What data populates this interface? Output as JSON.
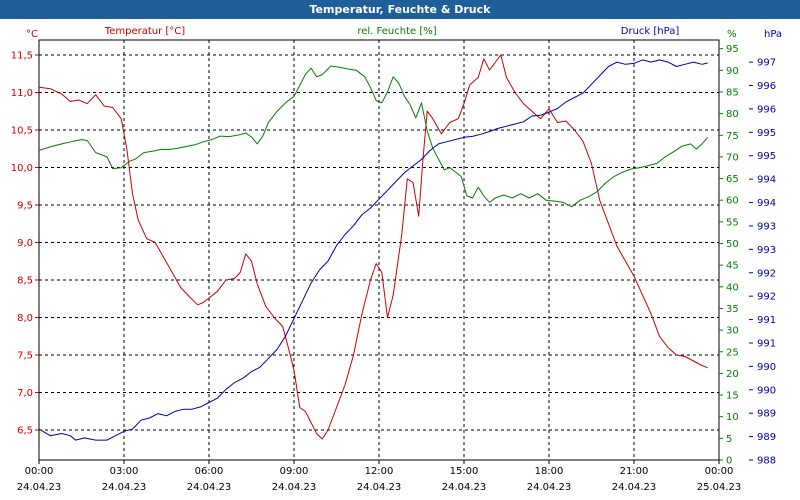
{
  "window": {
    "title": "Temperatur, Feuchte & Druck"
  },
  "chart_data": {
    "type": "line",
    "title": "Temperatur, Feuchte & Druck",
    "x_range_hours": [
      0,
      24
    ],
    "x_ticks": [
      {
        "time": "00:00",
        "date": "24.04.23"
      },
      {
        "time": "03:00",
        "date": "24.04.23"
      },
      {
        "time": "06:00",
        "date": "24.04.23"
      },
      {
        "time": "09:00",
        "date": "24.04.23"
      },
      {
        "time": "12:00",
        "date": "24.04.23"
      },
      {
        "time": "15:00",
        "date": "24.04.23"
      },
      {
        "time": "18:00",
        "date": "24.04.23"
      },
      {
        "time": "21:00",
        "date": "24.04.23"
      },
      {
        "time": "00:00",
        "date": "25.04.23"
      }
    ],
    "axes": {
      "temperature": {
        "unit": "°C",
        "ylim": [
          6.1,
          11.7
        ],
        "ticks": [
          "11,5",
          "11,0",
          "10,5",
          "10,0",
          "9,5",
          "9,0",
          "8,5",
          "8,0",
          "7,5",
          "7,0",
          "6,5"
        ]
      },
      "humidity": {
        "unit": "%",
        "ylim": [
          0,
          97
        ],
        "ticks": [
          "95",
          "90",
          "85",
          "80",
          "75",
          "70",
          "65",
          "60",
          "55",
          "50",
          "45",
          "40",
          "35",
          "30",
          "25",
          "20",
          "15",
          "10",
          "5",
          "0"
        ]
      },
      "pressure": {
        "unit": "hPa",
        "ylim": [
          988,
          997.5
        ],
        "ticks": [
          "997",
          "996",
          "996",
          "995",
          "995",
          "994",
          "994",
          "993",
          "993",
          "992",
          "992",
          "991",
          "991",
          "990",
          "990",
          "989",
          "989",
          "988"
        ]
      }
    },
    "series": [
      {
        "name": "Temperatur [°C]",
        "axis": "temperature",
        "color": "#cc0000",
        "points": [
          [
            0,
            11.07
          ],
          [
            0.4,
            11.05
          ],
          [
            0.8,
            10.98
          ],
          [
            1.1,
            10.88
          ],
          [
            1.4,
            10.9
          ],
          [
            1.7,
            10.85
          ],
          [
            2,
            10.97
          ],
          [
            2.3,
            10.82
          ],
          [
            2.6,
            10.8
          ],
          [
            2.9,
            10.65
          ],
          [
            3.1,
            10.25
          ],
          [
            3.3,
            9.65
          ],
          [
            3.5,
            9.3
          ],
          [
            3.8,
            9.05
          ],
          [
            4.1,
            9.0
          ],
          [
            4.4,
            8.8
          ],
          [
            4.7,
            8.6
          ],
          [
            5.0,
            8.4
          ],
          [
            5.3,
            8.28
          ],
          [
            5.6,
            8.17
          ],
          [
            5.8,
            8.2
          ],
          [
            6.0,
            8.26
          ],
          [
            6.3,
            8.35
          ],
          [
            6.6,
            8.5
          ],
          [
            6.9,
            8.52
          ],
          [
            7.1,
            8.6
          ],
          [
            7.3,
            8.85
          ],
          [
            7.5,
            8.75
          ],
          [
            7.7,
            8.45
          ],
          [
            8.0,
            8.15
          ],
          [
            8.3,
            8.0
          ],
          [
            8.6,
            7.88
          ],
          [
            8.8,
            7.6
          ],
          [
            9.0,
            7.3
          ],
          [
            9.2,
            6.8
          ],
          [
            9.4,
            6.75
          ],
          [
            9.6,
            6.6
          ],
          [
            9.8,
            6.45
          ],
          [
            10.0,
            6.38
          ],
          [
            10.2,
            6.5
          ],
          [
            10.5,
            6.8
          ],
          [
            10.8,
            7.1
          ],
          [
            11.1,
            7.5
          ],
          [
            11.4,
            8.05
          ],
          [
            11.7,
            8.5
          ],
          [
            11.9,
            8.72
          ],
          [
            12.1,
            8.6
          ],
          [
            12.3,
            8.0
          ],
          [
            12.5,
            8.3
          ],
          [
            12.8,
            9.1
          ],
          [
            13.0,
            9.85
          ],
          [
            13.2,
            9.8
          ],
          [
            13.4,
            9.35
          ],
          [
            13.55,
            10.1
          ],
          [
            13.7,
            10.75
          ],
          [
            13.9,
            10.65
          ],
          [
            14.2,
            10.45
          ],
          [
            14.5,
            10.6
          ],
          [
            14.8,
            10.65
          ],
          [
            15.0,
            10.85
          ],
          [
            15.2,
            11.1
          ],
          [
            15.5,
            11.2
          ],
          [
            15.7,
            11.45
          ],
          [
            15.9,
            11.3
          ],
          [
            16.1,
            11.4
          ],
          [
            16.3,
            11.5
          ],
          [
            16.5,
            11.2
          ],
          [
            16.8,
            11.0
          ],
          [
            17.1,
            10.85
          ],
          [
            17.4,
            10.75
          ],
          [
            17.7,
            10.65
          ],
          [
            18.0,
            10.78
          ],
          [
            18.3,
            10.6
          ],
          [
            18.6,
            10.62
          ],
          [
            18.9,
            10.5
          ],
          [
            19.2,
            10.35
          ],
          [
            19.5,
            10.05
          ],
          [
            19.8,
            9.55
          ],
          [
            20.1,
            9.25
          ],
          [
            20.4,
            8.95
          ],
          [
            20.7,
            8.75
          ],
          [
            21.0,
            8.55
          ],
          [
            21.3,
            8.3
          ],
          [
            21.6,
            8.05
          ],
          [
            21.9,
            7.75
          ],
          [
            22.2,
            7.6
          ],
          [
            22.5,
            7.5
          ],
          [
            22.8,
            7.48
          ],
          [
            23.1,
            7.42
          ],
          [
            23.4,
            7.36
          ],
          [
            23.6,
            7.33
          ]
        ]
      },
      {
        "name": "rel. Feuchte [%]",
        "axis": "humidity",
        "color": "#008000",
        "points": [
          [
            0,
            71.5
          ],
          [
            0.4,
            72.3
          ],
          [
            0.8,
            73
          ],
          [
            1.2,
            73.6
          ],
          [
            1.5,
            74
          ],
          [
            1.7,
            73.8
          ],
          [
            2.0,
            71.0
          ],
          [
            2.2,
            70.5
          ],
          [
            2.4,
            70.0
          ],
          [
            2.6,
            67.3
          ],
          [
            2.9,
            67.5
          ],
          [
            3.2,
            69.0
          ],
          [
            3.4,
            69.5
          ],
          [
            3.7,
            71.0
          ],
          [
            4.0,
            71.3
          ],
          [
            4.3,
            71.7
          ],
          [
            4.6,
            71.7
          ],
          [
            4.9,
            72.0
          ],
          [
            5.2,
            72.4
          ],
          [
            5.5,
            72.8
          ],
          [
            5.8,
            73.5
          ],
          [
            6.1,
            74.0
          ],
          [
            6.4,
            74.8
          ],
          [
            6.7,
            74.7
          ],
          [
            7.0,
            75.0
          ],
          [
            7.3,
            75.5
          ],
          [
            7.5,
            74.6
          ],
          [
            7.7,
            73.0
          ],
          [
            7.9,
            74.8
          ],
          [
            8.1,
            78.0
          ],
          [
            8.4,
            80.5
          ],
          [
            8.7,
            82.5
          ],
          [
            9.0,
            84.0
          ],
          [
            9.2,
            86.5
          ],
          [
            9.4,
            89.0
          ],
          [
            9.6,
            90.5
          ],
          [
            9.8,
            88.5
          ],
          [
            10.0,
            89.0
          ],
          [
            10.3,
            91.0
          ],
          [
            10.6,
            90.7
          ],
          [
            10.9,
            90.3
          ],
          [
            11.2,
            90.0
          ],
          [
            11.5,
            88.5
          ],
          [
            11.7,
            86.0
          ],
          [
            11.9,
            83.0
          ],
          [
            12.1,
            82.5
          ],
          [
            12.3,
            85.0
          ],
          [
            12.5,
            88.5
          ],
          [
            12.7,
            87.0
          ],
          [
            12.9,
            84.0
          ],
          [
            13.1,
            82.0
          ],
          [
            13.3,
            79.0
          ],
          [
            13.5,
            82.5
          ],
          [
            13.7,
            76.0
          ],
          [
            13.9,
            72.0
          ],
          [
            14.1,
            69.5
          ],
          [
            14.3,
            67.0
          ],
          [
            14.5,
            67.5
          ],
          [
            14.7,
            66.5
          ],
          [
            14.9,
            65.5
          ],
          [
            15.1,
            61.0
          ],
          [
            15.3,
            60.5
          ],
          [
            15.5,
            63.0
          ],
          [
            15.7,
            61.0
          ],
          [
            15.9,
            59.5
          ],
          [
            16.1,
            60.5
          ],
          [
            16.4,
            61.2
          ],
          [
            16.7,
            60.5
          ],
          [
            17.0,
            61.5
          ],
          [
            17.3,
            60.5
          ],
          [
            17.6,
            61.5
          ],
          [
            17.9,
            60.0
          ],
          [
            18.2,
            59.8
          ],
          [
            18.5,
            59.5
          ],
          [
            18.8,
            58.5
          ],
          [
            19.1,
            60.0
          ],
          [
            19.4,
            60.8
          ],
          [
            19.7,
            62.0
          ],
          [
            20.0,
            64.0
          ],
          [
            20.3,
            65.5
          ],
          [
            20.6,
            66.5
          ],
          [
            20.9,
            67.2
          ],
          [
            21.2,
            67.5
          ],
          [
            21.5,
            68.0
          ],
          [
            21.8,
            68.5
          ],
          [
            22.1,
            70.0
          ],
          [
            22.4,
            71.2
          ],
          [
            22.7,
            72.5
          ],
          [
            23.0,
            73.0
          ],
          [
            23.2,
            71.8
          ],
          [
            23.4,
            73.0
          ],
          [
            23.6,
            74.5
          ]
        ]
      },
      {
        "name": "Druck [hPa]",
        "axis": "pressure",
        "color": "#0000aa",
        "points": [
          [
            0,
            988.7
          ],
          [
            0.4,
            988.55
          ],
          [
            0.8,
            988.6
          ],
          [
            1.1,
            988.55
          ],
          [
            1.3,
            988.45
          ],
          [
            1.6,
            988.5
          ],
          [
            2.0,
            988.45
          ],
          [
            2.4,
            988.45
          ],
          [
            2.7,
            988.55
          ],
          [
            3.0,
            988.65
          ],
          [
            3.3,
            988.7
          ],
          [
            3.6,
            988.9
          ],
          [
            3.9,
            988.95
          ],
          [
            4.2,
            989.05
          ],
          [
            4.5,
            989.0
          ],
          [
            4.8,
            989.1
          ],
          [
            5.1,
            989.15
          ],
          [
            5.4,
            989.15
          ],
          [
            5.7,
            989.2
          ],
          [
            6.0,
            989.3
          ],
          [
            6.3,
            989.4
          ],
          [
            6.6,
            989.6
          ],
          [
            6.9,
            989.75
          ],
          [
            7.2,
            989.85
          ],
          [
            7.5,
            990.0
          ],
          [
            7.8,
            990.1
          ],
          [
            8.1,
            990.3
          ],
          [
            8.4,
            990.5
          ],
          [
            8.7,
            990.8
          ],
          [
            9.0,
            991.2
          ],
          [
            9.3,
            991.6
          ],
          [
            9.6,
            992.0
          ],
          [
            9.9,
            992.3
          ],
          [
            10.2,
            992.5
          ],
          [
            10.5,
            992.85
          ],
          [
            10.8,
            993.1
          ],
          [
            11.1,
            993.3
          ],
          [
            11.4,
            993.55
          ],
          [
            11.7,
            993.7
          ],
          [
            12.0,
            993.9
          ],
          [
            12.3,
            994.1
          ],
          [
            12.6,
            994.3
          ],
          [
            12.9,
            994.5
          ],
          [
            13.2,
            994.65
          ],
          [
            13.5,
            994.8
          ],
          [
            13.8,
            995.0
          ],
          [
            14.1,
            995.15
          ],
          [
            14.4,
            995.2
          ],
          [
            14.7,
            995.25
          ],
          [
            15.0,
            995.3
          ],
          [
            15.3,
            995.32
          ],
          [
            15.6,
            995.37
          ],
          [
            15.9,
            995.43
          ],
          [
            16.2,
            995.5
          ],
          [
            16.5,
            995.55
          ],
          [
            16.8,
            995.6
          ],
          [
            17.1,
            995.65
          ],
          [
            17.4,
            995.78
          ],
          [
            17.7,
            995.8
          ],
          [
            18.0,
            995.87
          ],
          [
            18.3,
            995.95
          ],
          [
            18.6,
            996.1
          ],
          [
            18.9,
            996.2
          ],
          [
            19.2,
            996.3
          ],
          [
            19.5,
            996.5
          ],
          [
            19.8,
            996.7
          ],
          [
            20.1,
            996.9
          ],
          [
            20.4,
            997.0
          ],
          [
            20.7,
            996.95
          ],
          [
            21.0,
            996.97
          ],
          [
            21.3,
            997.05
          ],
          [
            21.6,
            997.0
          ],
          [
            21.9,
            997.05
          ],
          [
            22.2,
            997.0
          ],
          [
            22.5,
            996.9
          ],
          [
            22.8,
            996.95
          ],
          [
            23.1,
            997.0
          ],
          [
            23.4,
            996.95
          ],
          [
            23.6,
            996.98
          ]
        ]
      }
    ]
  }
}
